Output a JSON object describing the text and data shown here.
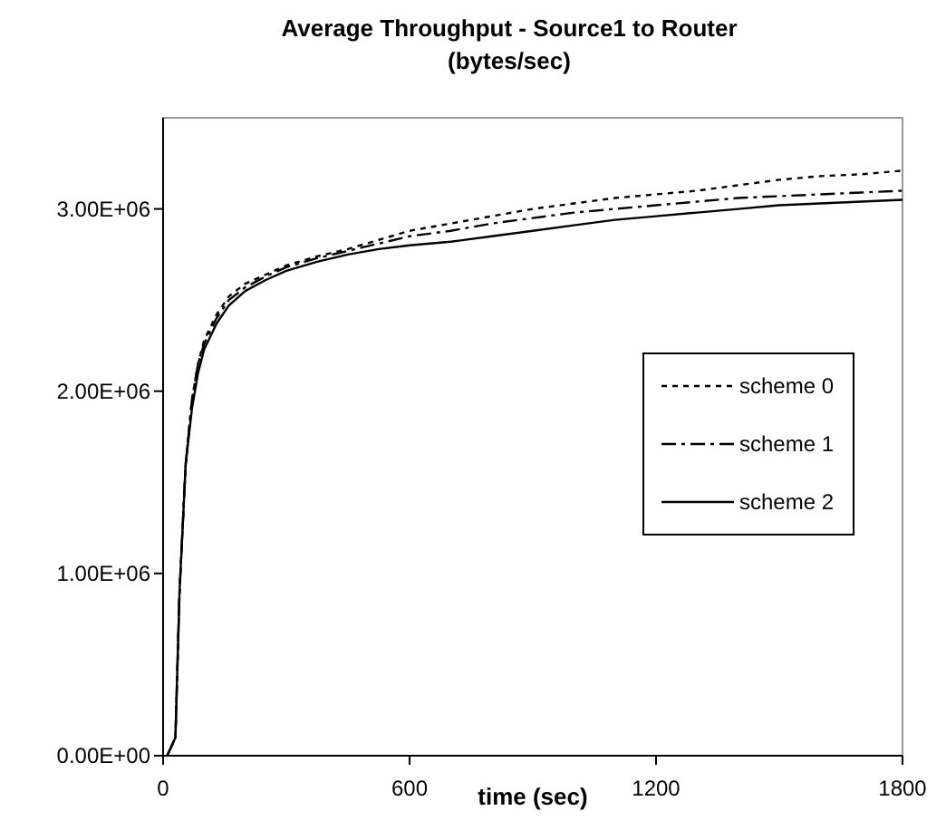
{
  "chart_data": {
    "type": "line",
    "title": "Average Throughput - Source1 to Router",
    "subtitle": "(bytes/sec)",
    "xlabel": "time (sec)",
    "xlim": [
      0,
      1800
    ],
    "xticks": [
      0,
      600,
      1200,
      1800
    ],
    "ylim": [
      0,
      3500000
    ],
    "yticks": [
      {
        "value": 0,
        "label": "0.00E+00"
      },
      {
        "value": 1000000,
        "label": "1.00E+06"
      },
      {
        "value": 2000000,
        "label": "2.00E+06"
      },
      {
        "value": 3000000,
        "label": "3.00E+06"
      }
    ],
    "legend": "right",
    "grid": false,
    "marker": "none",
    "x": [
      10,
      30,
      40,
      55,
      70,
      85,
      100,
      130,
      160,
      200,
      250,
      300,
      375,
      450,
      525,
      600,
      700,
      800,
      900,
      1000,
      1100,
      1200,
      1300,
      1400,
      1500,
      1600,
      1700,
      1800
    ],
    "series": [
      {
        "name": "scheme 0",
        "color": "#000000",
        "line_style": "dotted",
        "values": [
          0,
          100000,
          900000,
          1600000,
          1950000,
          2150000,
          2280000,
          2420000,
          2520000,
          2590000,
          2640000,
          2690000,
          2740000,
          2780000,
          2830000,
          2880000,
          2920000,
          2960000,
          3000000,
          3030000,
          3060000,
          3080000,
          3100000,
          3130000,
          3160000,
          3180000,
          3190000,
          3210000
        ]
      },
      {
        "name": "scheme 1",
        "color": "#000000",
        "line_style": "dashdot",
        "values": [
          0,
          100000,
          900000,
          1600000,
          1950000,
          2150000,
          2260000,
          2400000,
          2500000,
          2570000,
          2630000,
          2680000,
          2730000,
          2770000,
          2810000,
          2850000,
          2880000,
          2920000,
          2950000,
          2980000,
          3000000,
          3020000,
          3040000,
          3060000,
          3070000,
          3080000,
          3090000,
          3100000
        ]
      },
      {
        "name": "scheme 2",
        "color": "#000000",
        "line_style": "solid",
        "values": [
          0,
          100000,
          900000,
          1600000,
          1900000,
          2100000,
          2230000,
          2370000,
          2470000,
          2550000,
          2610000,
          2660000,
          2710000,
          2750000,
          2780000,
          2800000,
          2820000,
          2850000,
          2880000,
          2910000,
          2940000,
          2960000,
          2980000,
          3000000,
          3020000,
          3030000,
          3040000,
          3050000
        ]
      }
    ]
  }
}
